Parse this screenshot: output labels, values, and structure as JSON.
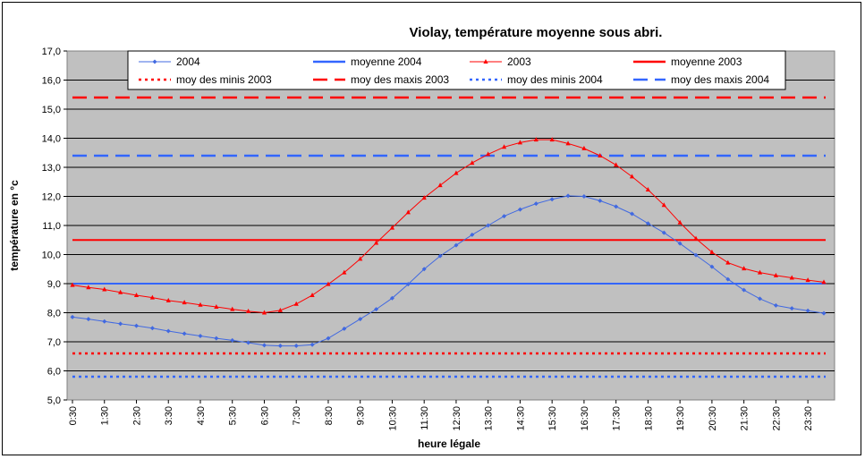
{
  "chart_data": {
    "type": "line",
    "title": "Violay, température moyenne sous abri.",
    "xlabel": "heure légale",
    "ylabel": "température en °c",
    "ylim": [
      5.0,
      17.0
    ],
    "y_ticks": [
      "5,0",
      "6,0",
      "7,0",
      "8,0",
      "9,0",
      "10,0",
      "11,0",
      "12,0",
      "13,0",
      "14,0",
      "15,0",
      "16,0",
      "17,0"
    ],
    "x_tick_labels": [
      "0:30",
      "1:30",
      "2:30",
      "3:30",
      "4:30",
      "5:30",
      "6:30",
      "7:30",
      "8:30",
      "9:30",
      "10:30",
      "11:30",
      "12:30",
      "13:30",
      "14:30",
      "15:30",
      "16:30",
      "17:30",
      "18:30",
      "19:30",
      "20:30",
      "21:30",
      "22:30",
      "23:30"
    ],
    "x": [
      0.5,
      1,
      1.5,
      2,
      2.5,
      3,
      3.5,
      4,
      4.5,
      5,
      5.5,
      6,
      6.5,
      7,
      7.5,
      8,
      8.5,
      9,
      9.5,
      10,
      10.5,
      11,
      11.5,
      12,
      12.5,
      13,
      13.5,
      14,
      14.5,
      15,
      15.5,
      16,
      16.5,
      17,
      17.5,
      18,
      18.5,
      19,
      19.5,
      20,
      20.5,
      21,
      21.5,
      22,
      22.5,
      23,
      23.5,
      24
    ],
    "grid": true,
    "legend_placement": "top",
    "plot_background": "#c0c0c0",
    "series": [
      {
        "name": "2004",
        "kind": "line",
        "color": "#4169e1",
        "marker": "diamond",
        "values": [
          7.85,
          7.78,
          7.7,
          7.62,
          7.55,
          7.47,
          7.37,
          7.28,
          7.2,
          7.12,
          7.05,
          6.97,
          6.88,
          6.86,
          6.86,
          6.9,
          7.12,
          7.45,
          7.78,
          8.12,
          8.5,
          8.98,
          9.5,
          9.95,
          10.32,
          10.68,
          11.0,
          11.32,
          11.55,
          11.75,
          11.9,
          12.02,
          12.0,
          11.85,
          11.65,
          11.4,
          11.07,
          10.75,
          10.38,
          9.98,
          9.58,
          9.15,
          8.78,
          8.48,
          8.25,
          8.15,
          8.07,
          7.98
        ]
      },
      {
        "name": "moyenne 2004",
        "kind": "hline",
        "color": "#3366ff",
        "dash": "solid",
        "value": 9.0
      },
      {
        "name": "2003",
        "kind": "line",
        "color": "#ff0000",
        "marker": "triangle",
        "values": [
          8.95,
          8.87,
          8.8,
          8.7,
          8.6,
          8.52,
          8.42,
          8.35,
          8.27,
          8.2,
          8.12,
          8.05,
          8.0,
          8.08,
          8.3,
          8.6,
          8.98,
          9.38,
          9.85,
          10.4,
          10.92,
          11.45,
          11.95,
          12.38,
          12.8,
          13.15,
          13.45,
          13.7,
          13.85,
          13.95,
          13.95,
          13.82,
          13.65,
          13.4,
          13.08,
          12.68,
          12.23,
          11.7,
          11.1,
          10.55,
          10.08,
          9.72,
          9.52,
          9.38,
          9.28,
          9.2,
          9.12,
          9.05
        ]
      },
      {
        "name": "moyenne 2003",
        "kind": "hline",
        "color": "#ff0000",
        "dash": "solid",
        "value": 10.5
      },
      {
        "name": "moy des minis 2003",
        "kind": "hline",
        "color": "#ff0000",
        "dash": "dot",
        "value": 6.6
      },
      {
        "name": "moy des maxis 2003",
        "kind": "hline",
        "color": "#ff0000",
        "dash": "dash",
        "value": 15.4
      },
      {
        "name": "moy des minis 2004",
        "kind": "hline",
        "color": "#3366ff",
        "dash": "dot",
        "value": 5.8
      },
      {
        "name": "moy des maxis 2004",
        "kind": "hline",
        "color": "#3366ff",
        "dash": "dash",
        "value": 13.4
      }
    ]
  }
}
